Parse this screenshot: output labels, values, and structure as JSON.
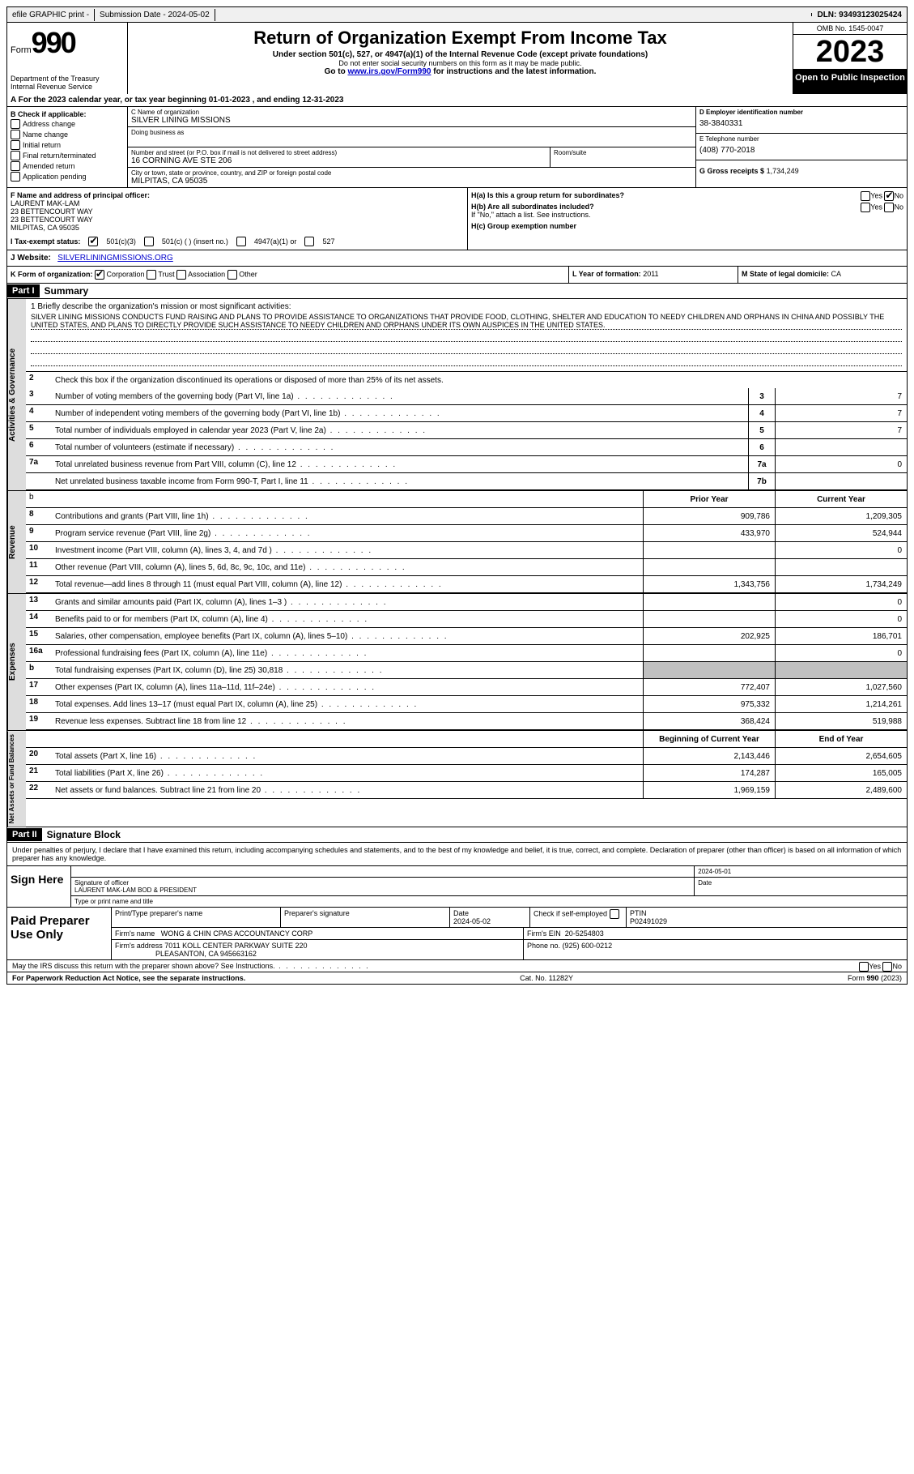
{
  "topbar": {
    "efile": "efile GRAPHIC print -",
    "submission_label": "Submission Date - 2024-05-02",
    "dln": "DLN: 93493123025424"
  },
  "header": {
    "form_label": "Form",
    "form_number": "990",
    "dept": "Department of the Treasury Internal Revenue Service",
    "title": "Return of Organization Exempt From Income Tax",
    "subtitle": "Under section 501(c), 527, or 4947(a)(1) of the Internal Revenue Code (except private foundations)",
    "note1": "Do not enter social security numbers on this form as it may be made public.",
    "note2_pre": "Go to ",
    "note2_link": "www.irs.gov/Form990",
    "note2_post": " for instructions and the latest information.",
    "omb": "OMB No. 1545-0047",
    "year": "2023",
    "inspection": "Open to Public Inspection"
  },
  "sectionA": "A For the 2023 calendar year, or tax year beginning 01-01-2023   , and ending 12-31-2023",
  "colB": {
    "title": "B Check if applicable:",
    "items": [
      "Address change",
      "Name change",
      "Initial return",
      "Final return/terminated",
      "Amended return",
      "Application pending"
    ]
  },
  "colC": {
    "name_label": "C Name of organization",
    "name": "SILVER LINING MISSIONS",
    "dba_label": "Doing business as",
    "dba": "",
    "street_label": "Number and street (or P.O. box if mail is not delivered to street address)",
    "street": "16 CORNING AVE STE 206",
    "room_label": "Room/suite",
    "room": "",
    "city_label": "City or town, state or province, country, and ZIP or foreign postal code",
    "city": "MILPITAS, CA  95035"
  },
  "colD": {
    "ein_label": "D Employer identification number",
    "ein": "38-3840331",
    "tel_label": "E Telephone number",
    "tel": "(408) 770-2018",
    "gross_label": "G Gross receipts $",
    "gross": "1,734,249"
  },
  "officer": {
    "label": "F Name and address of principal officer:",
    "lines": [
      "LAURENT MAK-LAM",
      "23 BETTENCOURT WAY",
      "23 BETTENCOURT WAY",
      "MILPITAS, CA  95035"
    ]
  },
  "h": {
    "ha": "H(a)  Is this a group return for subordinates?",
    "ha_yes": "Yes",
    "ha_no": "No",
    "hb": "H(b)  Are all subordinates included?",
    "hb_note": "If \"No,\" attach a list. See instructions.",
    "hc": "H(c)  Group exemption number"
  },
  "rowI": {
    "label": "I  Tax-exempt status:",
    "opt1": "501(c)(3)",
    "opt2": "501(c) (  ) (insert no.)",
    "opt3": "4947(a)(1) or",
    "opt4": "527"
  },
  "rowJ": {
    "label": "J  Website:",
    "value": "SILVERLININGMISSIONS.ORG"
  },
  "rowK": {
    "label": "K Form of organization:",
    "opts": [
      "Corporation",
      "Trust",
      "Association",
      "Other"
    ]
  },
  "rowL": {
    "label": "L Year of formation:",
    "value": "2011"
  },
  "rowM": {
    "label": "M State of legal domicile:",
    "value": "CA"
  },
  "part1": {
    "header": "Part I",
    "title": "Summary"
  },
  "mission": {
    "label": "1   Briefly describe the organization's mission or most significant activities:",
    "text": "SILVER LINING MISSIONS CONDUCTS FUND RAISING AND PLANS TO PROVIDE ASSISTANCE TO ORGANIZATIONS THAT PROVIDE FOOD, CLOTHING, SHELTER AND EDUCATION TO NEEDY CHILDREN AND ORPHANS IN CHINA AND POSSIBLY THE UNITED STATES, AND PLANS TO DIRECTLY PROVIDE SUCH ASSISTANCE TO NEEDY CHILDREN AND ORPHANS UNDER ITS OWN AUSPICES IN THE UNITED STATES."
  },
  "gov": {
    "line2": "Check this box         if the organization discontinued its operations or disposed of more than 25% of its net assets.",
    "rows": [
      {
        "n": "3",
        "d": "Number of voting members of the governing body (Part VI, line 1a)",
        "r": "3",
        "v": "7"
      },
      {
        "n": "4",
        "d": "Number of independent voting members of the governing body (Part VI, line 1b)",
        "r": "4",
        "v": "7"
      },
      {
        "n": "5",
        "d": "Total number of individuals employed in calendar year 2023 (Part V, line 2a)",
        "r": "5",
        "v": "7"
      },
      {
        "n": "6",
        "d": "Total number of volunteers (estimate if necessary)",
        "r": "6",
        "v": ""
      },
      {
        "n": "7a",
        "d": "Total unrelated business revenue from Part VIII, column (C), line 12",
        "r": "7a",
        "v": "0"
      },
      {
        "n": "",
        "d": "Net unrelated business taxable income from Form 990-T, Part I, line 11",
        "r": "7b",
        "v": ""
      }
    ]
  },
  "revhdr": {
    "prior": "Prior Year",
    "current": "Current Year"
  },
  "revenue": [
    {
      "n": "8",
      "d": "Contributions and grants (Part VIII, line 1h)",
      "p": "909,786",
      "c": "1,209,305"
    },
    {
      "n": "9",
      "d": "Program service revenue (Part VIII, line 2g)",
      "p": "433,970",
      "c": "524,944"
    },
    {
      "n": "10",
      "d": "Investment income (Part VIII, column (A), lines 3, 4, and 7d )",
      "p": "",
      "c": "0"
    },
    {
      "n": "11",
      "d": "Other revenue (Part VIII, column (A), lines 5, 6d, 8c, 9c, 10c, and 11e)",
      "p": "",
      "c": ""
    },
    {
      "n": "12",
      "d": "Total revenue—add lines 8 through 11 (must equal Part VIII, column (A), line 12)",
      "p": "1,343,756",
      "c": "1,734,249"
    }
  ],
  "expenses": [
    {
      "n": "13",
      "d": "Grants and similar amounts paid (Part IX, column (A), lines 1–3 )",
      "p": "",
      "c": "0"
    },
    {
      "n": "14",
      "d": "Benefits paid to or for members (Part IX, column (A), line 4)",
      "p": "",
      "c": "0"
    },
    {
      "n": "15",
      "d": "Salaries, other compensation, employee benefits (Part IX, column (A), lines 5–10)",
      "p": "202,925",
      "c": "186,701"
    },
    {
      "n": "16a",
      "d": "Professional fundraising fees (Part IX, column (A), line 11e)",
      "p": "",
      "c": "0"
    },
    {
      "n": "b",
      "d": "Total fundraising expenses (Part IX, column (D), line 25) 30,818",
      "p": "shaded",
      "c": "shaded"
    },
    {
      "n": "17",
      "d": "Other expenses (Part IX, column (A), lines 11a–11d, 11f–24e)",
      "p": "772,407",
      "c": "1,027,560"
    },
    {
      "n": "18",
      "d": "Total expenses. Add lines 13–17 (must equal Part IX, column (A), line 25)",
      "p": "975,332",
      "c": "1,214,261"
    },
    {
      "n": "19",
      "d": "Revenue less expenses. Subtract line 18 from line 12",
      "p": "368,424",
      "c": "519,988"
    }
  ],
  "nahdr": {
    "begin": "Beginning of Current Year",
    "end": "End of Year"
  },
  "netassets": [
    {
      "n": "20",
      "d": "Total assets (Part X, line 16)",
      "p": "2,143,446",
      "c": "2,654,605"
    },
    {
      "n": "21",
      "d": "Total liabilities (Part X, line 26)",
      "p": "174,287",
      "c": "165,005"
    },
    {
      "n": "22",
      "d": "Net assets or fund balances. Subtract line 21 from line 20",
      "p": "1,969,159",
      "c": "2,489,600"
    }
  ],
  "vtabs": {
    "gov": "Activities & Governance",
    "rev": "Revenue",
    "exp": "Expenses",
    "na": "Net Assets or Fund Balances"
  },
  "part2": {
    "header": "Part II",
    "title": "Signature Block"
  },
  "sig": {
    "decl": "Under penalties of perjury, I declare that I have examined this return, including accompanying schedules and statements, and to the best of my knowledge and belief, it is true, correct, and complete. Declaration of preparer (other than officer) is based on all information of which preparer has any knowledge.",
    "sign_here": "Sign Here",
    "date": "2024-05-01",
    "sig_of_officer": "Signature of officer",
    "officer_name": "LAURENT MAK-LAM  BOD & PRESIDENT",
    "type_name": "Type or print name and title"
  },
  "prep": {
    "label": "Paid Preparer Use Only",
    "print_name_label": "Print/Type preparer's name",
    "prep_sig_label": "Preparer's signature",
    "date_label": "Date",
    "date": "2024-05-02",
    "check_label": "Check         if self-employed",
    "ptin_label": "PTIN",
    "ptin": "P02491029",
    "firm_name_label": "Firm's name",
    "firm_name": "WONG & CHIN CPAS ACCOUNTANCY CORP",
    "firm_ein_label": "Firm's EIN",
    "firm_ein": "20-5254803",
    "firm_addr_label": "Firm's address",
    "firm_addr1": "7011 KOLL CENTER PARKWAY SUITE 220",
    "firm_addr2": "PLEASANTON, CA  945663162",
    "phone_label": "Phone no.",
    "phone": "(925) 600-0212"
  },
  "discuss": "May the IRS discuss this return with the preparer shown above? See Instructions.",
  "footer": {
    "left": "For Paperwork Reduction Act Notice, see the separate instructions.",
    "mid": "Cat. No. 11282Y",
    "right": "Form 990 (2023)"
  }
}
